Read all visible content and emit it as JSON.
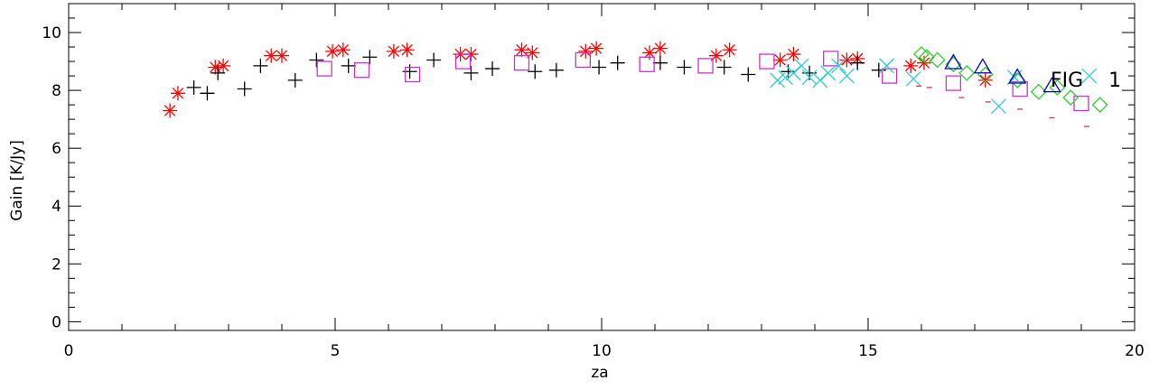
{
  "chart_data": {
    "type": "scatter",
    "title": "",
    "xlabel": "za",
    "ylabel": "Gain [K/Jy]",
    "xlim": [
      0,
      20
    ],
    "ylim": [
      -0.3,
      11
    ],
    "x_major_ticks": [
      0,
      5,
      10,
      15,
      20
    ],
    "y_major_ticks": [
      0,
      2,
      4,
      6,
      8,
      10
    ],
    "x_minor_step": 1,
    "y_minor_step": 0.5,
    "annotation": "FIG    1",
    "colors": {
      "asterisk": "#ff0000",
      "plus": "#000000",
      "square": "#cc33cc",
      "cross": "#33cccc",
      "diamond": "#33cc33",
      "triangle": "#0000cc",
      "dash": "#cc3366"
    },
    "series": [
      {
        "marker": "asterisk",
        "points": [
          [
            1.9,
            7.3
          ],
          [
            2.05,
            7.9
          ],
          [
            2.75,
            8.8
          ],
          [
            2.9,
            8.85
          ],
          [
            3.8,
            9.2
          ],
          [
            4.0,
            9.2
          ],
          [
            4.95,
            9.35
          ],
          [
            5.15,
            9.4
          ],
          [
            6.1,
            9.35
          ],
          [
            6.35,
            9.4
          ],
          [
            7.35,
            9.25
          ],
          [
            7.55,
            9.25
          ],
          [
            8.5,
            9.4
          ],
          [
            8.7,
            9.3
          ],
          [
            9.7,
            9.35
          ],
          [
            9.9,
            9.45
          ],
          [
            10.9,
            9.3
          ],
          [
            11.1,
            9.45
          ],
          [
            12.15,
            9.2
          ],
          [
            12.4,
            9.4
          ],
          [
            13.35,
            9.05
          ],
          [
            13.6,
            9.25
          ],
          [
            14.6,
            9.05
          ],
          [
            14.8,
            9.1
          ],
          [
            15.8,
            8.85
          ],
          [
            16.05,
            8.95
          ],
          [
            17.2,
            8.35
          ]
        ]
      },
      {
        "marker": "plus",
        "points": [
          [
            2.35,
            8.1
          ],
          [
            2.6,
            7.9
          ],
          [
            2.8,
            8.6
          ],
          [
            3.3,
            8.05
          ],
          [
            3.6,
            8.85
          ],
          [
            4.25,
            8.35
          ],
          [
            4.65,
            9.05
          ],
          [
            5.25,
            8.85
          ],
          [
            5.65,
            9.15
          ],
          [
            6.4,
            8.65
          ],
          [
            6.85,
            9.05
          ],
          [
            7.55,
            8.6
          ],
          [
            7.95,
            8.75
          ],
          [
            8.75,
            8.65
          ],
          [
            9.15,
            8.7
          ],
          [
            9.95,
            8.8
          ],
          [
            10.3,
            8.95
          ],
          [
            11.1,
            8.95
          ],
          [
            11.55,
            8.8
          ],
          [
            12.3,
            8.8
          ],
          [
            12.75,
            8.55
          ],
          [
            13.5,
            8.65
          ],
          [
            13.9,
            8.6
          ],
          [
            14.8,
            8.95
          ],
          [
            15.2,
            8.7
          ]
        ]
      },
      {
        "marker": "square",
        "points": [
          [
            4.8,
            8.75
          ],
          [
            5.5,
            8.7
          ],
          [
            6.45,
            8.55
          ],
          [
            7.4,
            9.0
          ],
          [
            8.5,
            8.95
          ],
          [
            9.65,
            9.05
          ],
          [
            10.85,
            8.9
          ],
          [
            11.95,
            8.85
          ],
          [
            13.1,
            9.0
          ],
          [
            14.3,
            9.1
          ],
          [
            15.4,
            8.5
          ],
          [
            16.6,
            8.25
          ],
          [
            17.85,
            8.05
          ],
          [
            19.0,
            7.55
          ]
        ]
      },
      {
        "marker": "cross",
        "points": [
          [
            13.3,
            8.35
          ],
          [
            13.45,
            8.45
          ],
          [
            13.6,
            8.6
          ],
          [
            13.75,
            8.85
          ],
          [
            13.9,
            8.45
          ],
          [
            14.1,
            8.35
          ],
          [
            14.25,
            8.6
          ],
          [
            14.45,
            8.85
          ],
          [
            14.6,
            8.5
          ],
          [
            15.35,
            8.85
          ],
          [
            15.85,
            8.4
          ],
          [
            17.45,
            7.45
          ],
          [
            17.75,
            8.45
          ],
          [
            19.15,
            8.5
          ]
        ]
      },
      {
        "marker": "diamond",
        "points": [
          [
            16.0,
            9.25
          ],
          [
            16.1,
            9.15
          ],
          [
            16.3,
            9.05
          ],
          [
            16.6,
            8.9
          ],
          [
            16.85,
            8.6
          ],
          [
            17.2,
            8.55
          ],
          [
            17.8,
            8.35
          ],
          [
            18.2,
            7.95
          ],
          [
            18.55,
            8.1
          ],
          [
            18.8,
            7.75
          ],
          [
            19.35,
            7.5
          ]
        ]
      },
      {
        "marker": "triangle",
        "points": [
          [
            16.6,
            8.95
          ],
          [
            17.15,
            8.8
          ],
          [
            17.8,
            8.45
          ],
          [
            18.45,
            8.15
          ]
        ]
      },
      {
        "marker": "dash",
        "points": [
          [
            15.95,
            8.15
          ],
          [
            16.15,
            8.1
          ],
          [
            16.75,
            7.75
          ],
          [
            17.25,
            7.6
          ],
          [
            17.85,
            7.35
          ],
          [
            18.45,
            7.05
          ],
          [
            19.1,
            6.75
          ]
        ]
      }
    ]
  }
}
